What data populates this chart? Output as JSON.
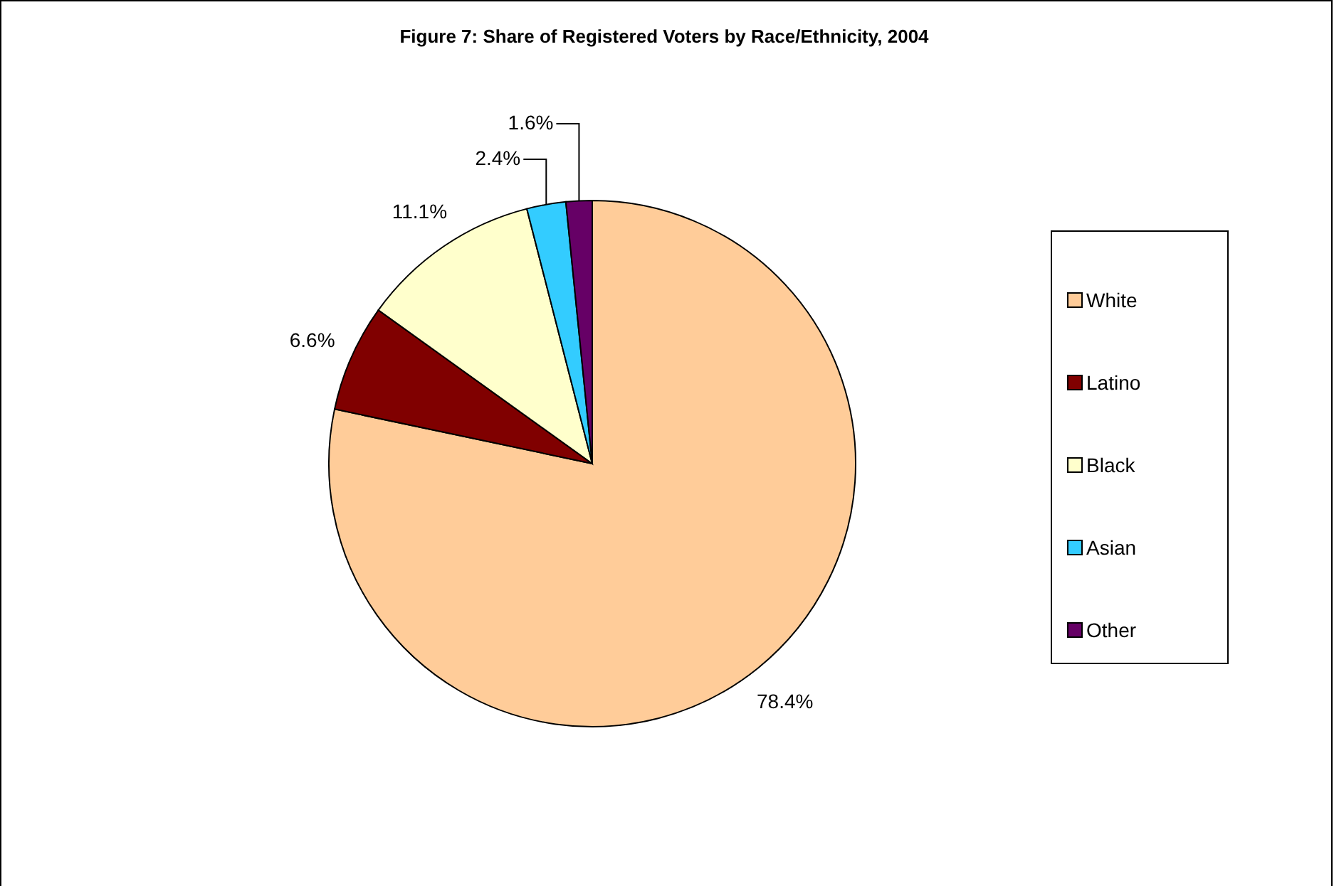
{
  "chart_data": {
    "type": "pie",
    "title": "Figure 7: Share of Registered Voters by Race/Ethnicity, 2004",
    "categories": [
      "White",
      "Latino",
      "Black",
      "Asian",
      "Other"
    ],
    "values": [
      78.4,
      6.6,
      11.1,
      2.4,
      1.6
    ],
    "colors": [
      "#ffcc99",
      "#800000",
      "#ffffcc",
      "#33ccff",
      "#660066"
    ],
    "value_labels": [
      "78.4%",
      "6.6%",
      "11.1%",
      "2.4%",
      "1.6%"
    ],
    "legend": "right"
  }
}
